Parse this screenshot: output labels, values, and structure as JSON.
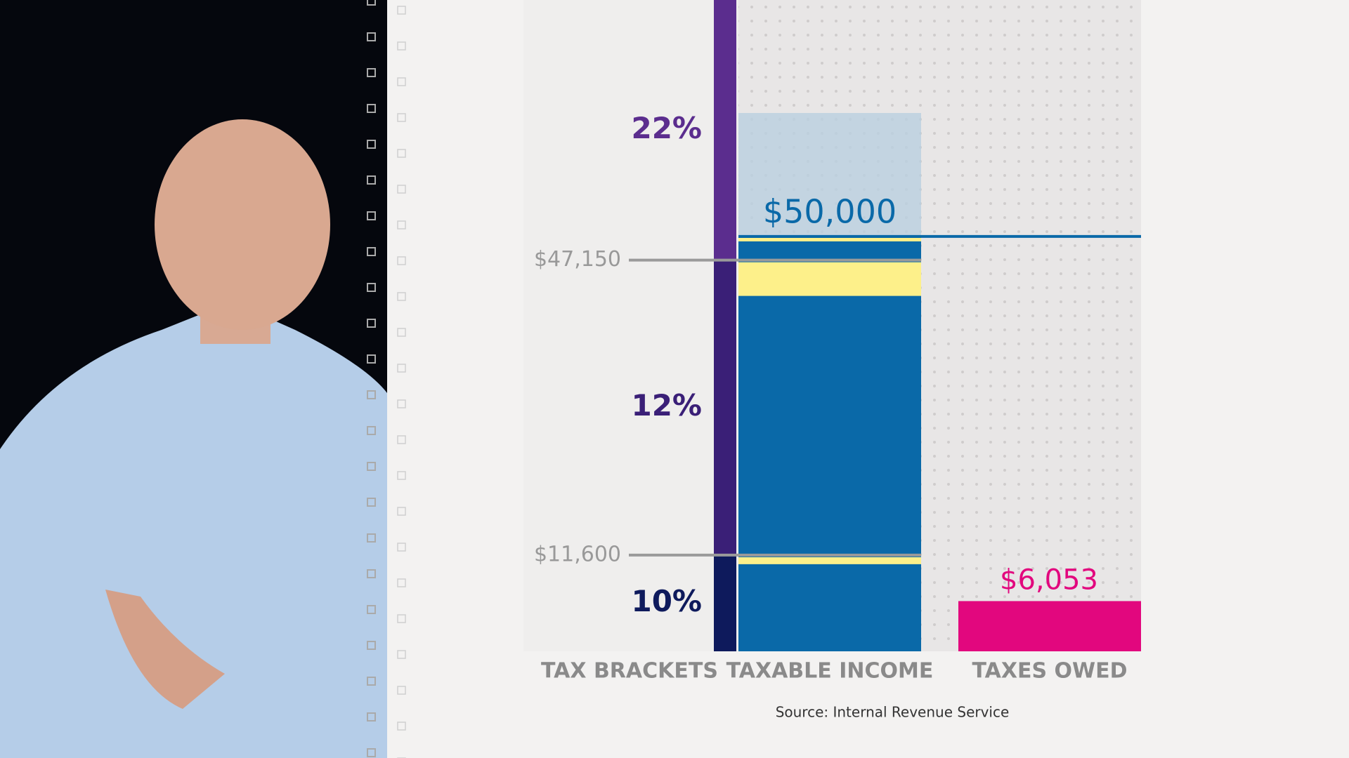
{
  "chart_data": {
    "type": "tax-bracket",
    "ylim": [
      0,
      78500
    ],
    "yticks": [
      {
        "value": 11600,
        "label": "$11,600"
      },
      {
        "value": 47150,
        "label": "$47,150"
      }
    ],
    "brackets": {
      "rates": [
        10,
        12,
        22
      ],
      "rate_labels": [
        "10%",
        "12%",
        "22%"
      ],
      "colors": [
        "#0e1a5c",
        "#3a1f77",
        "#5b2d8e"
      ]
    },
    "categories": [
      "TAX BRACKETS",
      "TAXABLE INCOME",
      "TAXES OWED"
    ],
    "income": {
      "value": 50000,
      "value_label": "$50,000",
      "color": "#0a69a8"
    },
    "taxes": {
      "value": 6053,
      "value_label": "$6,053",
      "color": "#e2077e"
    },
    "source": "Source: Internal Revenue Service"
  }
}
